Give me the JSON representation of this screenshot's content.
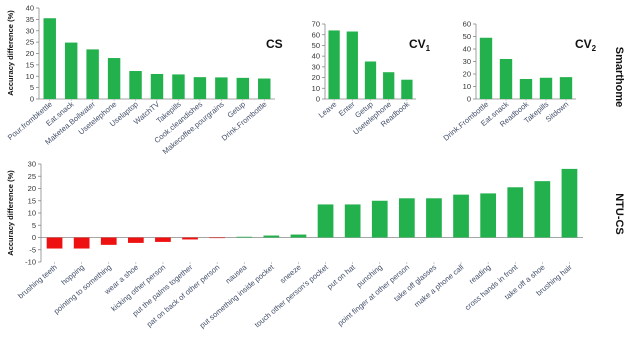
{
  "figure": {
    "group_labels": [
      "Smarthome",
      "NTU-CS"
    ]
  },
  "chart_data": [
    {
      "type": "bar",
      "title": "CS",
      "ylabel": "Accuracy difference (%)",
      "xlabel": "",
      "ylim": [
        0,
        40
      ],
      "yticks": [
        0,
        5,
        10,
        15,
        20,
        25,
        30,
        35,
        40
      ],
      "grid": false,
      "color": "#22b14c",
      "categories": [
        "Pour.frombkettle",
        "Eat.snack",
        "Maketea.Boilwater",
        "Usetelephone",
        "Uselaptop",
        "WatchTV",
        "Takepills",
        "Cook.cleandishes",
        "Makecoffee.pourgrains",
        "Getup",
        "Drink.Frombottle"
      ],
      "values": [
        35.5,
        24.8,
        21.8,
        18.0,
        12.3,
        11.0,
        10.8,
        9.6,
        9.5,
        9.3,
        9.0
      ]
    },
    {
      "type": "bar",
      "title": "CV1",
      "ylabel": "",
      "xlabel": "",
      "ylim": [
        0,
        70
      ],
      "yticks": [
        0,
        10,
        20,
        30,
        40,
        50,
        60,
        70
      ],
      "grid": false,
      "color": "#22b14c",
      "categories": [
        "Leave",
        "Enter",
        "Getup",
        "Usetelephone",
        "Readbook"
      ],
      "values": [
        64,
        63,
        35,
        25,
        18
      ]
    },
    {
      "type": "bar",
      "title": "CV2",
      "ylabel": "",
      "xlabel": "",
      "ylim": [
        0,
        60
      ],
      "yticks": [
        0,
        10,
        20,
        30,
        40,
        50,
        60
      ],
      "grid": false,
      "color": "#22b14c",
      "categories": [
        "Drink.Frombottle",
        "Eat.snack",
        "Readbook",
        "Takepills",
        "Sitdown"
      ],
      "values": [
        49,
        32,
        16,
        17,
        17.5
      ]
    },
    {
      "type": "bar",
      "title": "",
      "ylabel": "Accuracy difference (%)",
      "xlabel": "",
      "ylim": [
        -10,
        30
      ],
      "yticks": [
        -10,
        -5,
        0,
        5,
        10,
        15,
        20,
        25,
        30
      ],
      "grid": false,
      "positive_color": "#22b14c",
      "negative_color": "#ee1111",
      "categories": [
        "brushing teeth",
        "hopping",
        "pointing to something",
        "wear a shoe",
        "kicking other person",
        "put the palms together",
        "pat on back of other person",
        "nausea",
        "put something inside pocket",
        "sneeze",
        "touch other person's pocket",
        "put on hat",
        "punching",
        "point finger at other person",
        "take off glasses",
        "make a phone call",
        "reading",
        "cross hands in front",
        "take off a shoe",
        "brushing hair"
      ],
      "values": [
        -4.5,
        -4.5,
        -3.0,
        -2.2,
        -1.8,
        -0.8,
        -0.2,
        0.3,
        0.8,
        1.2,
        13.5,
        13.5,
        15.0,
        16.0,
        16.0,
        17.5,
        18.0,
        20.5,
        23.0,
        28.0
      ]
    }
  ]
}
